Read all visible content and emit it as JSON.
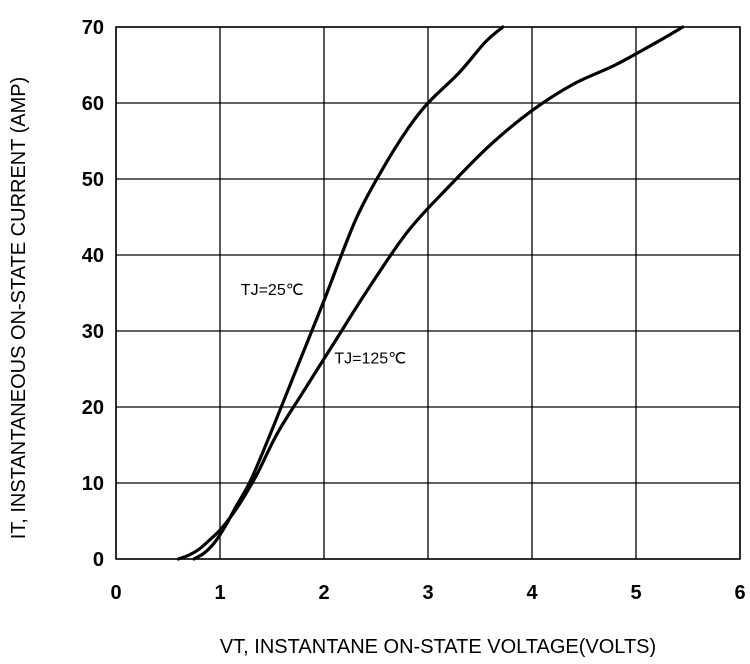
{
  "chart_data": {
    "type": "line",
    "title": "",
    "xlabel": "VT, INSTANTANE ON-STATE VOLTAGE(VOLTS)",
    "ylabel": "IT, INSTANTANEOUS ON-STATE CURRENT (AMP)",
    "xlim": [
      0,
      6
    ],
    "ylim": [
      0,
      70
    ],
    "x_ticks": [
      0,
      1,
      2,
      3,
      4,
      5,
      6
    ],
    "y_ticks": [
      0,
      10,
      20,
      30,
      40,
      50,
      60,
      70
    ],
    "grid": true,
    "series": [
      {
        "name": "TJ=25℃",
        "x": [
          0.75,
          0.85,
          0.95,
          1.05,
          1.15,
          1.3,
          1.5,
          1.75,
          2.0,
          2.3,
          2.55,
          2.8,
          3.0,
          3.3,
          3.55,
          3.72
        ],
        "y": [
          0,
          0.8,
          2.2,
          4.3,
          6.8,
          10.5,
          17.0,
          25.5,
          34.0,
          44.5,
          51.0,
          56.5,
          60.0,
          64.0,
          68.0,
          70.0
        ]
      },
      {
        "name": "TJ=125℃",
        "x": [
          0.6,
          0.7,
          0.8,
          0.9,
          1.0,
          1.1,
          1.2,
          1.35,
          1.55,
          1.8,
          2.1,
          2.4,
          2.8,
          3.2,
          3.6,
          4.0,
          4.4,
          4.8,
          5.2,
          5.45
        ],
        "y": [
          0,
          0.5,
          1.3,
          2.5,
          3.8,
          5.5,
          7.5,
          11.0,
          16.5,
          22.0,
          28.5,
          35.0,
          43.0,
          49.0,
          54.5,
          59.0,
          62.5,
          65.0,
          68.0,
          70.0
        ]
      }
    ],
    "annotations": [
      {
        "text": "TJ=25℃",
        "x": 1.2,
        "y": 35.5
      },
      {
        "text": "TJ=125℃",
        "x": 2.1,
        "y": 26.5
      }
    ]
  }
}
